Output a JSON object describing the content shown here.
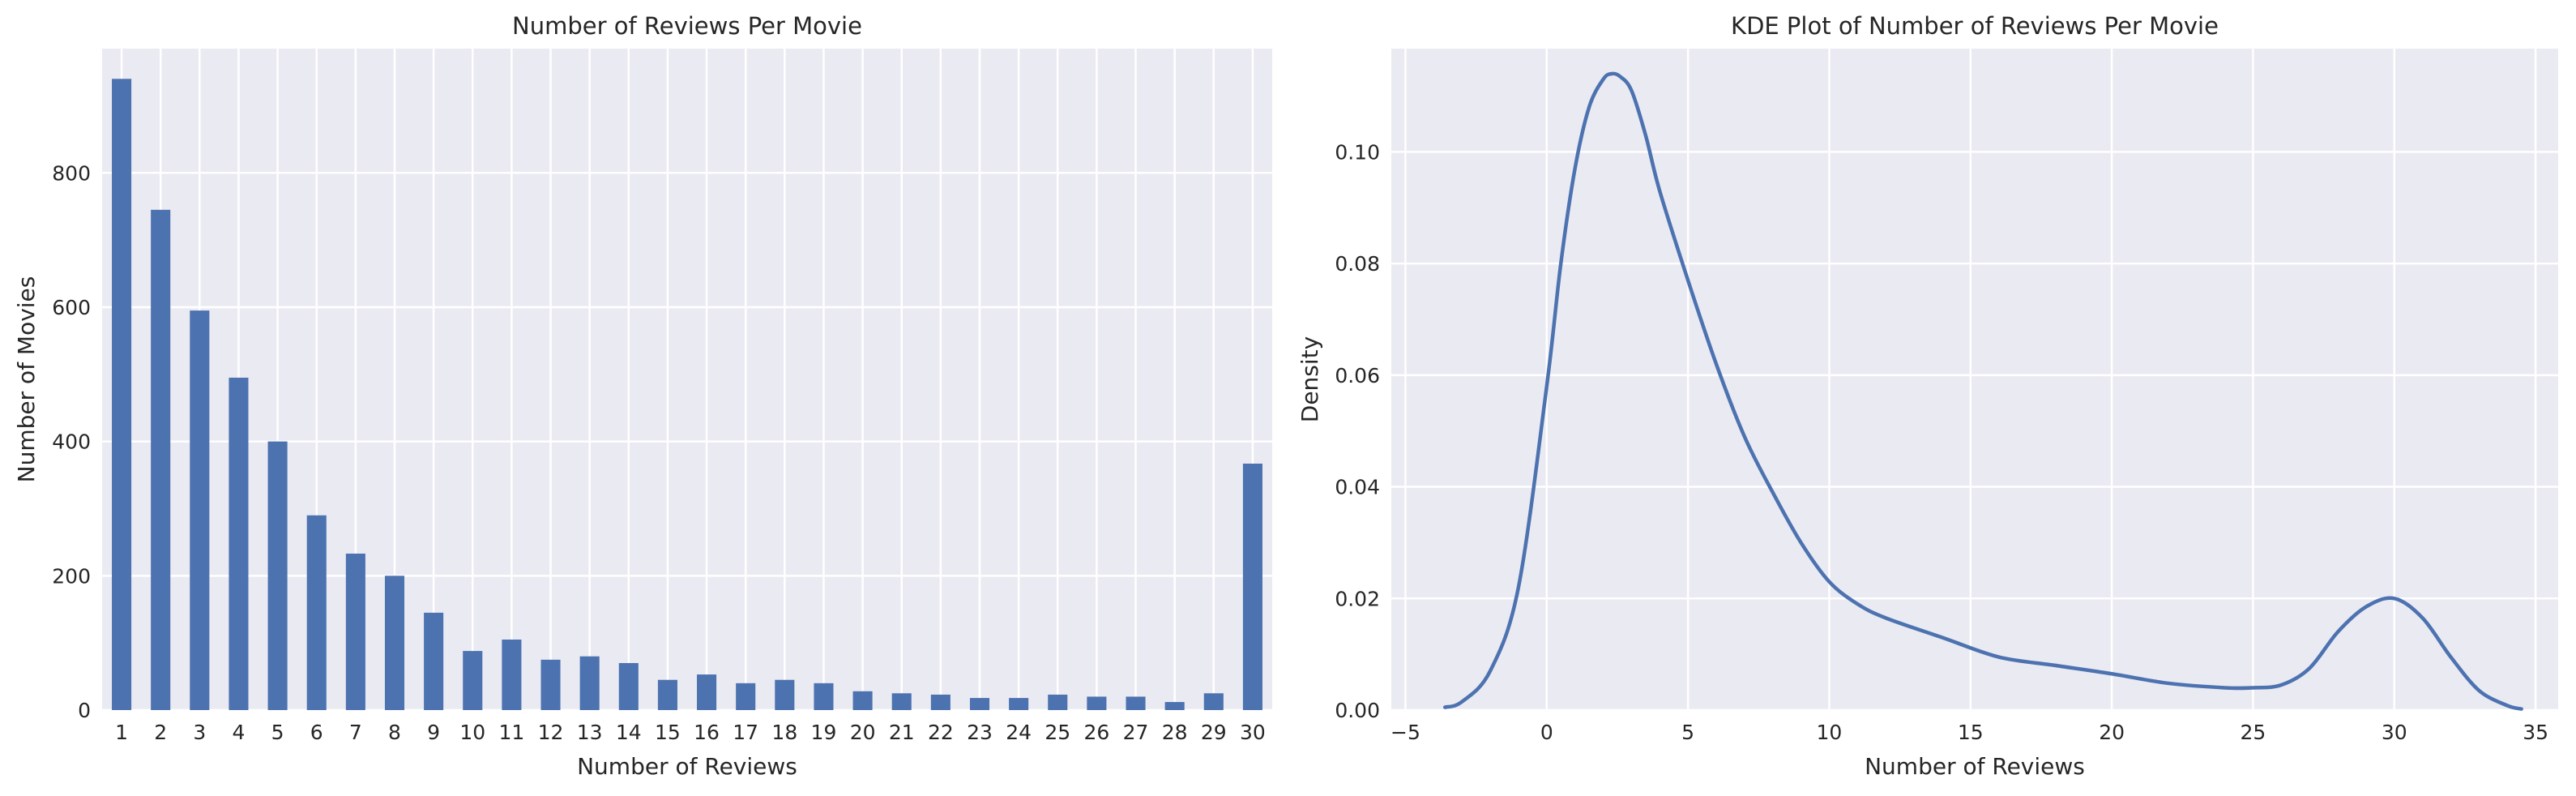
{
  "chart_data": [
    {
      "type": "bar",
      "title": "Number of Reviews Per Movie",
      "xlabel": "Number of Reviews",
      "ylabel": "Number of Movies",
      "categories": [
        "1",
        "2",
        "3",
        "4",
        "5",
        "6",
        "7",
        "8",
        "9",
        "10",
        "11",
        "12",
        "13",
        "14",
        "15",
        "16",
        "17",
        "18",
        "19",
        "20",
        "21",
        "22",
        "23",
        "24",
        "25",
        "26",
        "27",
        "28",
        "29",
        "30"
      ],
      "values": [
        940,
        745,
        595,
        495,
        400,
        290,
        233,
        200,
        145,
        88,
        105,
        75,
        80,
        70,
        45,
        53,
        40,
        45,
        40,
        28,
        25,
        23,
        18,
        18,
        23,
        20,
        20,
        12,
        25,
        367
      ],
      "ylim": [
        0,
        985
      ],
      "yticks": [
        "0",
        "200",
        "400",
        "600",
        "800"
      ],
      "color": "#4c72b0",
      "grid": true
    },
    {
      "type": "line",
      "title": "KDE Plot of Number of Reviews Per Movie",
      "xlabel": "Number of Reviews",
      "ylabel": "Density",
      "x": [
        -3.6,
        -3,
        -2,
        -1,
        0,
        0.5,
        1,
        1.5,
        2,
        2.3,
        2.6,
        3,
        3.5,
        4,
        5,
        6,
        7,
        8,
        9,
        10,
        11,
        12,
        14,
        16,
        18,
        20,
        22,
        24,
        25,
        26,
        27,
        28,
        29,
        30,
        31,
        32,
        33,
        34,
        34.5
      ],
      "y": [
        0.0005,
        0.0015,
        0.007,
        0.022,
        0.058,
        0.08,
        0.097,
        0.108,
        0.113,
        0.114,
        0.1135,
        0.111,
        0.103,
        0.093,
        0.077,
        0.062,
        0.049,
        0.039,
        0.03,
        0.023,
        0.019,
        0.0165,
        0.013,
        0.0095,
        0.008,
        0.0065,
        0.0048,
        0.004,
        0.004,
        0.0045,
        0.0075,
        0.014,
        0.0185,
        0.02,
        0.0165,
        0.0095,
        0.0035,
        0.0008,
        0.0002
      ],
      "xlim": [
        -5.5,
        35.8
      ],
      "ylim": [
        0,
        0.1185
      ],
      "xticks": [
        "−5",
        "0",
        "5",
        "10",
        "15",
        "20",
        "25",
        "30",
        "35"
      ],
      "yticks": [
        "0.00",
        "0.02",
        "0.04",
        "0.06",
        "0.08",
        "0.10"
      ],
      "color": "#4c72b0",
      "grid": true
    }
  ]
}
